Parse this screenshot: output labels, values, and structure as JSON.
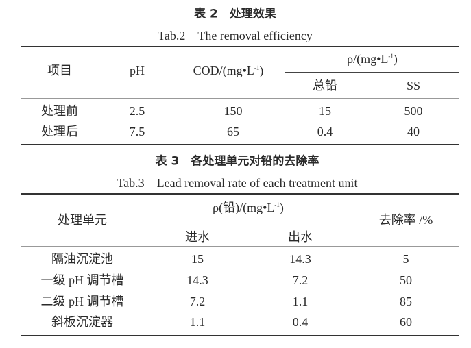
{
  "table2": {
    "title": "表 2　处理效果",
    "subtitle": "Tab.2　The removal efficiency",
    "headers": {
      "item": "项目",
      "ph": "pH",
      "cod": "COD/(mg•L",
      "rho": "ρ/(mg•L",
      "lead": "总铅",
      "ss": "SS",
      "sup": "-1",
      "close": ")"
    },
    "rows": [
      {
        "item": "处理前",
        "ph": "2.5",
        "cod": "150",
        "lead": "15",
        "ss": "500"
      },
      {
        "item": "处理后",
        "ph": "7.5",
        "cod": "65",
        "lead": "0.4",
        "ss": "40"
      }
    ]
  },
  "table3": {
    "title": "表 3　各处理单元对铅的去除率",
    "subtitle": "Tab.3　Lead removal rate of each treatment unit",
    "headers": {
      "unit": "处理单元",
      "rho": "ρ(铅)/(mg•L",
      "sup": "-1",
      "close": ")",
      "inflow": "进水",
      "outflow": "出水",
      "rate": "去除率 /%"
    },
    "rows": [
      {
        "unit": "隔油沉淀池",
        "inflow": "15",
        "outflow": "14.3",
        "rate": "5"
      },
      {
        "unit": "一级 pH 调节槽",
        "inflow": "14.3",
        "outflow": "7.2",
        "rate": "50"
      },
      {
        "unit": "二级 pH 调节槽",
        "inflow": "7.2",
        "outflow": "1.1",
        "rate": "85"
      },
      {
        "unit": "斜板沉淀器",
        "inflow": "1.1",
        "outflow": "0.4",
        "rate": "60"
      }
    ]
  }
}
